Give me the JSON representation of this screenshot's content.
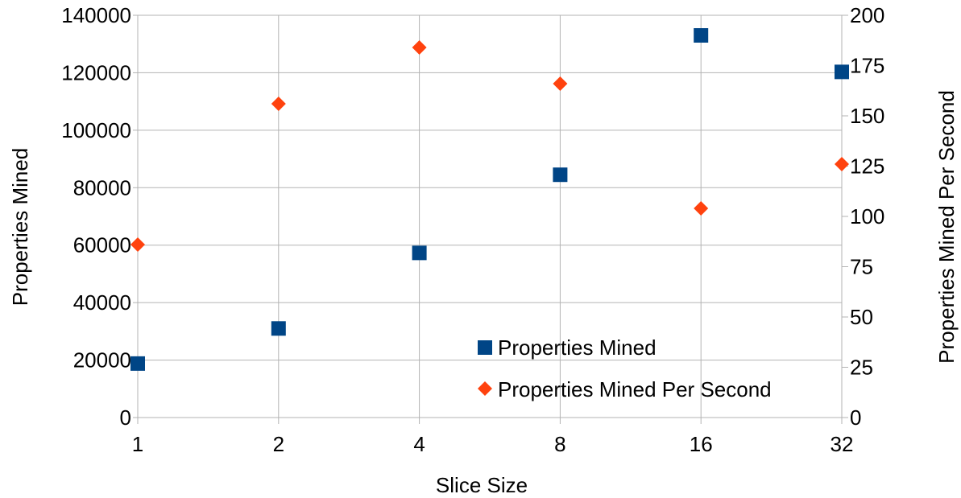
{
  "chart_data": {
    "type": "scatter",
    "x_categories": [
      "1",
      "2",
      "4",
      "8",
      "16",
      "32"
    ],
    "xlabel": "Slice Size",
    "ylabel_left": "Properties Mined",
    "ylabel_right": "Properties Mined Per Second",
    "y_left": {
      "min": 0,
      "max": 140000,
      "ticks": [
        "0",
        "20000",
        "40000",
        "60000",
        "80000",
        "100000",
        "120000",
        "140000"
      ]
    },
    "y_right": {
      "min": 0,
      "max": 200,
      "ticks": [
        "0",
        "25",
        "50",
        "75",
        "100",
        "125",
        "150",
        "175",
        "200"
      ]
    },
    "grid": true,
    "legend_position": "bottom-right",
    "series": [
      {
        "name": "Properties Mined",
        "axis": "left",
        "marker": "square",
        "color": "#004586",
        "x": [
          "1",
          "2",
          "4",
          "8",
          "16",
          "32"
        ],
        "values": [
          18800,
          31000,
          57300,
          84500,
          133000,
          120300
        ]
      },
      {
        "name": "Properties Mined Per Second",
        "axis": "right",
        "marker": "diamond",
        "color": "#ff420e",
        "x": [
          "1",
          "2",
          "4",
          "8",
          "16",
          "32"
        ],
        "values": [
          86,
          156,
          184,
          166,
          104,
          126
        ]
      }
    ]
  }
}
